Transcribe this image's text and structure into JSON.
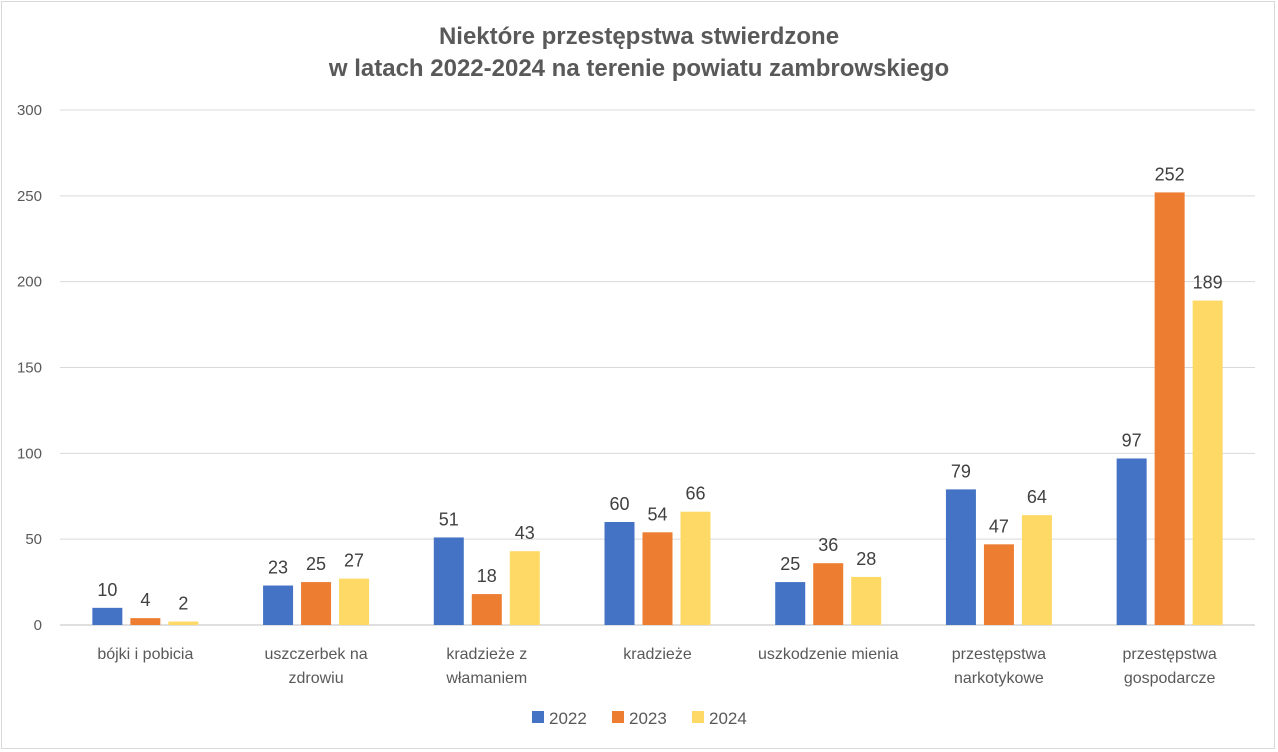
{
  "chart_data": {
    "type": "bar",
    "title": [
      "Niektóre przestępstwa stwierdzone",
      "w latach 2022-2024 na terenie powiatu zambrowskiego"
    ],
    "categories": [
      [
        "bójki i pobicia"
      ],
      [
        "uszczerbek na",
        "zdrowiu"
      ],
      [
        "kradzieże z",
        "włamaniem"
      ],
      [
        "kradzieże"
      ],
      [
        "uszkodzenie mienia"
      ],
      [
        "przestępstwa",
        "narkotykowe"
      ],
      [
        "przestępstwa",
        "gospodarcze"
      ]
    ],
    "series": [
      {
        "name": "2022",
        "color": "#4472c4",
        "values": [
          10,
          23,
          51,
          60,
          25,
          79,
          97
        ]
      },
      {
        "name": "2023",
        "color": "#ed7d31",
        "values": [
          4,
          25,
          18,
          54,
          36,
          47,
          252
        ]
      },
      {
        "name": "2024",
        "color": "#ffd966",
        "values": [
          2,
          27,
          43,
          66,
          28,
          64,
          189
        ]
      }
    ],
    "ylim": [
      0,
      300
    ],
    "yticks": [
      0,
      50,
      100,
      150,
      200,
      250,
      300
    ],
    "grid": true,
    "legend": "bottom",
    "xlabel": "",
    "ylabel": ""
  }
}
